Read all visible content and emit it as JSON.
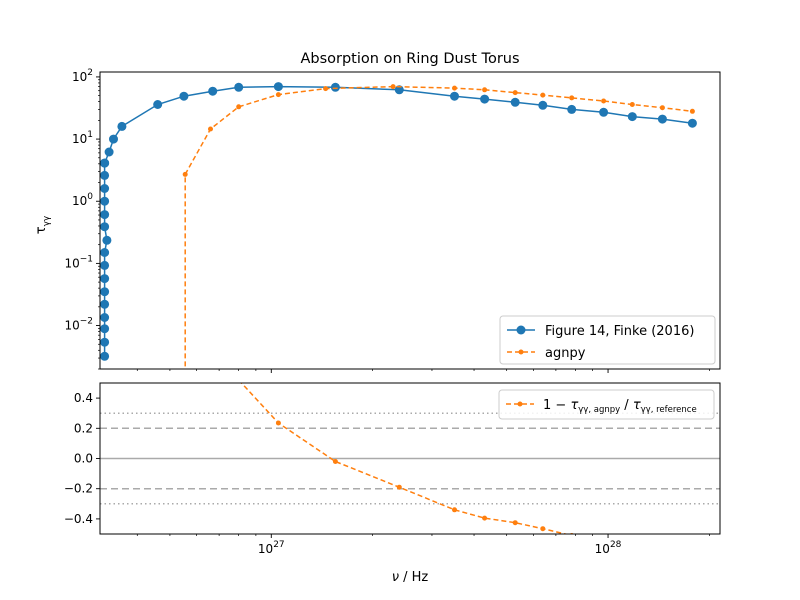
{
  "chart_data": [
    {
      "type": "line",
      "title": "Absorption on Ring Dust Torus",
      "ylabel": "τ_γγ",
      "ylabel_main": "τ",
      "ylabel_sub": "γγ",
      "yscale": "log",
      "xscale": "log",
      "ylim": [
        0.002,
        120
      ],
      "xlim": [
        3.1e+26,
        2.15e+28
      ],
      "yticks": [
        {
          "value": 100,
          "mant": "10",
          "exp": "2"
        },
        {
          "value": 10,
          "mant": "10",
          "exp": "1"
        },
        {
          "value": 1,
          "mant": "10",
          "exp": "0"
        },
        {
          "value": 0.1,
          "mant": "10",
          "exp": "−1"
        },
        {
          "value": 0.01,
          "mant": "10",
          "exp": "−2"
        }
      ],
      "legend_position": "lower right",
      "series": [
        {
          "name": "Figure 14, Finke (2016)",
          "color": "#1f77b4",
          "marker": "circle",
          "linestyle": "solid",
          "x": [
            3.2e+26,
            3.2e+26,
            3.2e+26,
            3.2e+26,
            3.2e+26,
            3.2e+26,
            3.2e+26,
            3.2e+26,
            3.2e+26,
            3.25e+26,
            3.2e+26,
            3.2e+26,
            3.2e+26,
            3.2e+26,
            3.2e+26,
            3.2e+26,
            3.2e+26,
            3.3e+26,
            3.4e+26,
            3.6e+26,
            4.6e+26,
            5.5e+26,
            6.7e+26,
            8e+26,
            1.05e+27,
            1.55e+27,
            2.4e+27,
            3.5e+27,
            4.3e+27,
            5.3e+27,
            6.4e+27,
            7.8e+27,
            9.7e+27,
            1.18e+28,
            1.45e+28,
            1.78e+28
          ],
          "y": [
            0.0032,
            0.0054,
            0.0089,
            0.0135,
            0.022,
            0.035,
            0.057,
            0.093,
            0.15,
            0.235,
            0.39,
            0.61,
            1.0,
            1.6,
            2.6,
            4.1,
            4.1,
            6.2,
            10.0,
            16.0,
            36.0,
            49.0,
            59.0,
            68.0,
            70.0,
            68.0,
            62.0,
            49.0,
            44.0,
            39.0,
            35.0,
            30.0,
            27.0,
            23.0,
            21.0,
            18.0
          ]
        },
        {
          "name": "agnpy",
          "color": "#ff7f0e",
          "marker": "point",
          "linestyle": "dashed",
          "x": [
            5.55e+26,
            5.55e+26,
            6.6e+26,
            8e+26,
            1.05e+27,
            1.45e+27,
            2.3e+27,
            3.5e+27,
            4.3e+27,
            5.3e+27,
            6.4e+27,
            7.8e+27,
            9.7e+27,
            1.18e+28,
            1.45e+28,
            1.78e+28
          ],
          "y": [
            0.0005,
            2.7,
            14.5,
            33.0,
            52.0,
            65.0,
            70.0,
            66.0,
            62.0,
            56.0,
            51.0,
            46.0,
            41.0,
            36.0,
            32.0,
            28.0
          ]
        }
      ]
    },
    {
      "type": "line",
      "xlabel": "ν / Hz",
      "xlabel_nu": "ν",
      "xlabel_unit": " / Hz",
      "xscale": "log",
      "ylim": [
        -0.5,
        0.5
      ],
      "xlim": [
        3.1e+26,
        2.15e+28
      ],
      "yticks": [
        "0.4",
        "0.2",
        "0.0",
        "−0.2",
        "−0.4"
      ],
      "ytick_values": [
        0.4,
        0.2,
        0.0,
        -0.2,
        -0.4
      ],
      "xticks": [
        {
          "value": 1e+27,
          "mant": "10",
          "exp": "27"
        },
        {
          "value": 1e+28,
          "mant": "10",
          "exp": "28"
        }
      ],
      "reference_lines": [
        {
          "y": 0.0,
          "style": "solid",
          "color": "#aaaaaa"
        },
        {
          "y": 0.2,
          "style": "dashed",
          "color": "#aaaaaa"
        },
        {
          "y": -0.2,
          "style": "dashed",
          "color": "#aaaaaa"
        },
        {
          "y": 0.3,
          "style": "dotted",
          "color": "#aaaaaa"
        },
        {
          "y": -0.3,
          "style": "dotted",
          "color": "#aaaaaa"
        }
      ],
      "legend_position": "upper right",
      "series": [
        {
          "name": "1 − τ_γγ,agnpy / τ_γγ,reference",
          "legend_parts": {
            "one": "1 − ",
            "tau": "τ",
            "sub1": "γγ, agnpy",
            "slash": " / ",
            "sub2": "γγ, reference"
          },
          "color": "#ff7f0e",
          "marker": "point",
          "linestyle": "dashed",
          "x": [
            8e+26,
            1.05e+27,
            1.55e+27,
            2.4e+27,
            3.5e+27,
            4.3e+27,
            5.3e+27,
            6.4e+27,
            7.8e+27,
            9.7e+27
          ],
          "y": [
            0.52,
            0.235,
            -0.02,
            -0.19,
            -0.34,
            -0.395,
            -0.425,
            -0.465,
            -0.51,
            -0.56
          ]
        }
      ]
    }
  ]
}
